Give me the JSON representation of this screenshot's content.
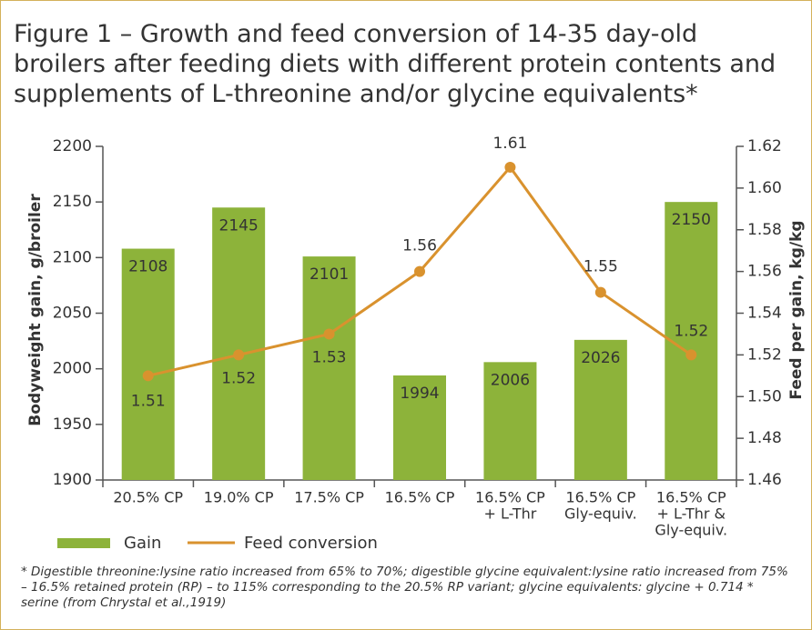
{
  "chart_data": {
    "type": "bar_line",
    "title": "Figure 1 – Growth and feed conversion of 14-35 day-old broilers after feeding diets with different protein contents and supplements of L-threonine and/or glycine equivalents*",
    "footnote": "* Digestible threonine:lysine ratio increased from 65% to 70%; digestible glycine equivalent:lysine ratio increased from 75% – 16.5% retained protein (RP) – to 115% corresponding to the 20.5% RP variant; glycine equivalents: glycine + 0.714 * serine (from Chrystal et al.,1919)",
    "ylabel": "Bodyweight gain, g/broiler",
    "y2label": "Feed per gain, kg/kg",
    "categories": [
      [
        "20.5% CP"
      ],
      [
        "19.0% CP"
      ],
      [
        "17.5% CP"
      ],
      [
        "16.5% CP"
      ],
      [
        "16.5% CP",
        "+ L-Thr"
      ],
      [
        "16.5% CP",
        "Gly-equiv."
      ],
      [
        "16.5% CP",
        "+ L-Thr &",
        "Gly-equiv."
      ]
    ],
    "series": [
      {
        "name": "Gain",
        "type": "bar",
        "color": "#8db33a",
        "values": [
          2108,
          2145,
          2101,
          1994,
          2006,
          2026,
          2150
        ]
      },
      {
        "name": "Feed conversion",
        "type": "line",
        "axis": "y2",
        "color": "#d9922e",
        "values": [
          1.51,
          1.52,
          1.53,
          1.56,
          1.61,
          1.55,
          1.52
        ]
      }
    ],
    "ylim": [
      1900,
      2200
    ],
    "yticks": [
      1900,
      1950,
      2000,
      2050,
      2100,
      2150,
      2200
    ],
    "y2lim": [
      1.46,
      1.62
    ],
    "y2ticks": [
      1.46,
      1.48,
      {
        "value": 1.5,
        "label": "1.50"
      },
      1.52,
      1.54,
      1.56,
      1.58,
      {
        "value": 1.6,
        "label": "1.60"
      },
      1.62
    ],
    "grid": false,
    "legend": "bottom"
  }
}
